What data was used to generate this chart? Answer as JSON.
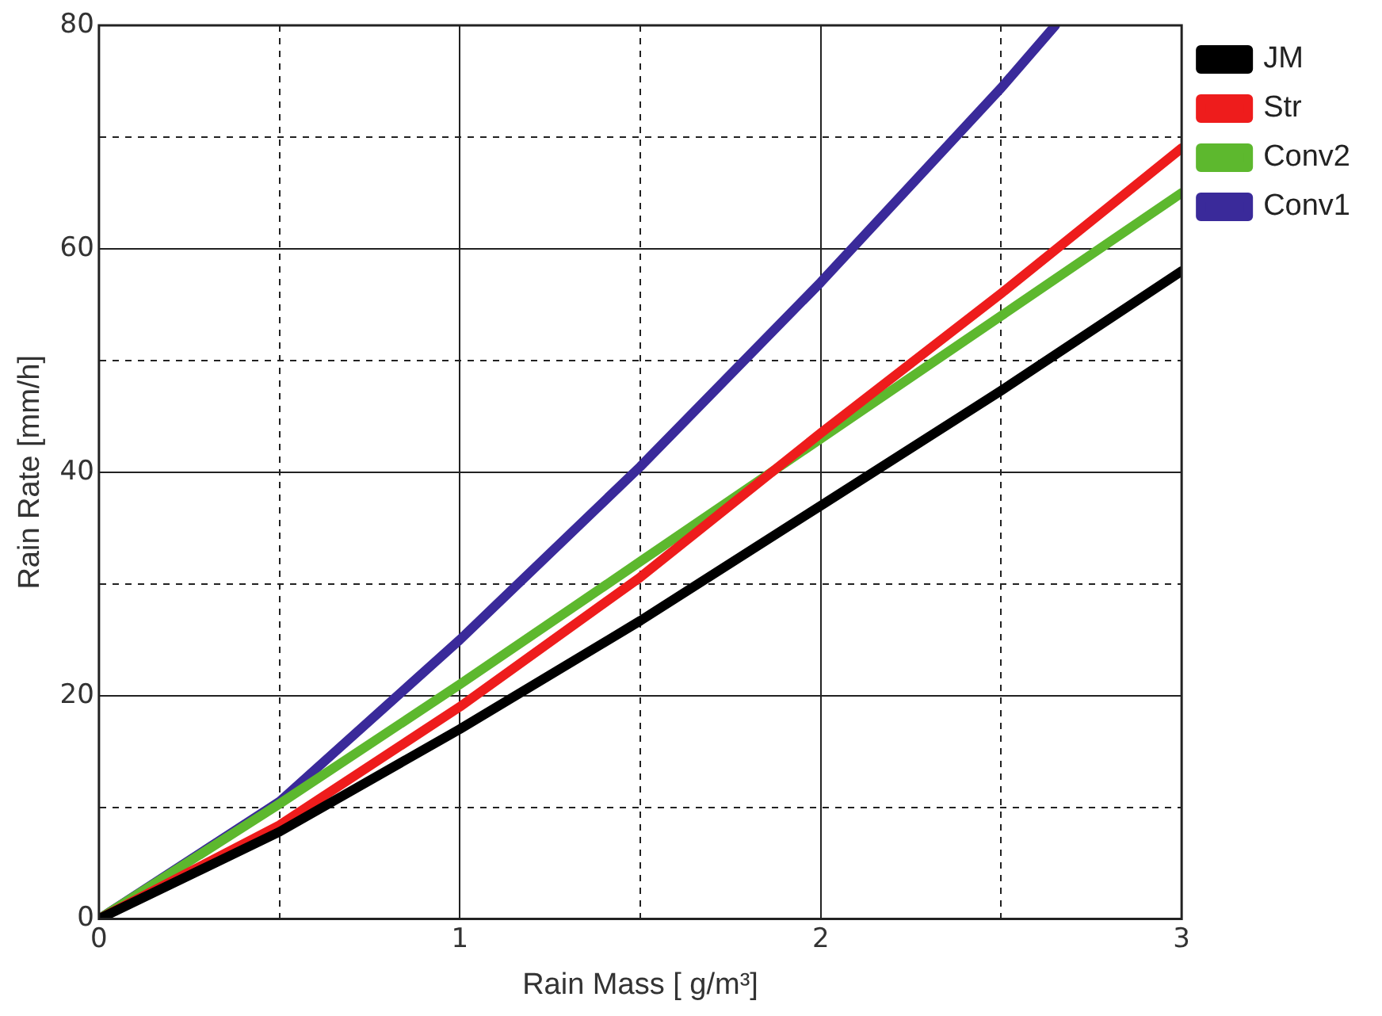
{
  "chart_data": {
    "type": "line",
    "xlabel": "Rain Mass [ g/m³]",
    "ylabel": "Rain Rate [mm/h]",
    "xlim": [
      0,
      3
    ],
    "ylim": [
      0,
      80
    ],
    "xticks": [
      0,
      {
        "value": 0.5,
        "label": null
      },
      1,
      {
        "value": 1.5,
        "label": null
      },
      2,
      {
        "value": 2.5,
        "label": null
      },
      3
    ],
    "yticks": [
      0,
      {
        "value": 10,
        "label": null
      },
      20,
      {
        "value": 30,
        "label": null
      },
      40,
      {
        "value": 50,
        "label": null
      },
      60,
      {
        "value": 70,
        "label": null
      },
      80
    ],
    "grid": true,
    "legend": "top right",
    "marker": "none",
    "line_style": "solid",
    "series": [
      {
        "name": "JM",
        "color": "#000000",
        "x": [
          0,
          0.5,
          1,
          1.5,
          2,
          2.5,
          3
        ],
        "values": [
          0,
          7.8,
          17,
          26.7,
          37,
          47.3,
          58
        ]
      },
      {
        "name": "Str",
        "color": "#ee1c1c",
        "x": [
          0,
          0.5,
          1,
          1.5,
          2,
          2.5,
          3
        ],
        "values": [
          0,
          8.4,
          19,
          30.6,
          43.5,
          56,
          69
        ]
      },
      {
        "name": "Conv2",
        "color": "#5db82e",
        "x": [
          0,
          0.5,
          1,
          1.5,
          2,
          2.5,
          3
        ],
        "values": [
          0,
          10.3,
          21,
          32,
          43,
          54,
          65
        ]
      },
      {
        "name": "Conv1",
        "color": "#3a2a9a",
        "x": [
          0,
          0.5,
          1,
          1.5,
          2,
          2.5,
          2.65
        ],
        "values": [
          0,
          10.5,
          25,
          40.5,
          57,
          74.4,
          80
        ]
      }
    ]
  }
}
